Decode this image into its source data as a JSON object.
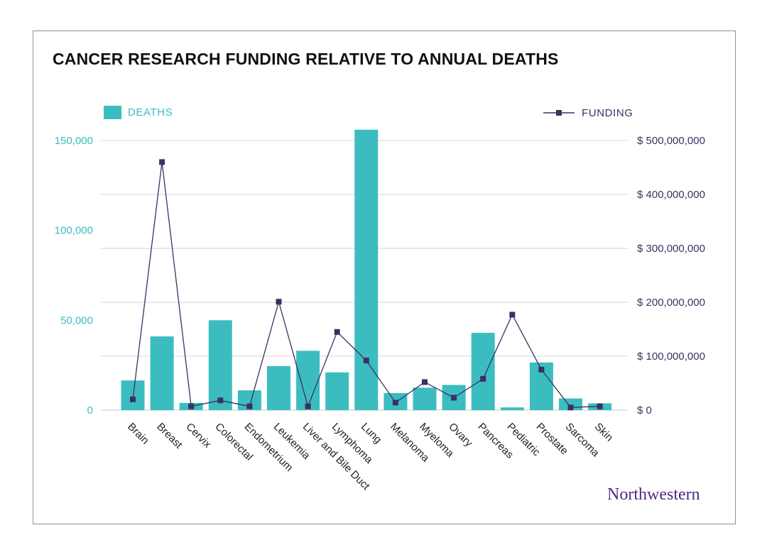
{
  "chart_data": {
    "type": "bar",
    "title": "CANCER RESEARCH FUNDING RELATIVE TO ANNUAL DEATHS",
    "categories": [
      "Brain",
      "Breast",
      "Cervix",
      "Colorectal",
      "Endometrium",
      "Leukemia",
      "Liver and Bile Duct",
      "Lymphoma",
      "Lung",
      "Melanoma",
      "Myeloma",
      "Ovary",
      "Pancreas",
      "Pediatric",
      "Prostate",
      "Sarcoma",
      "Skin"
    ],
    "series": [
      {
        "name": "DEATHS",
        "kind": "bar",
        "axis": "left",
        "color": "#3bbdc0",
        "values": [
          16500,
          41000,
          4000,
          50000,
          11000,
          24500,
          33000,
          21000,
          156000,
          9500,
          12500,
          14000,
          43000,
          1500,
          26500,
          6500,
          3800
        ]
      },
      {
        "name": "FUNDING",
        "kind": "line",
        "axis": "right",
        "color": "#3d2f63",
        "values": [
          20000000,
          460000000,
          7000000,
          18000000,
          7000000,
          201000000,
          7000000,
          145000000,
          92000000,
          14000000,
          52000000,
          23000000,
          58000000,
          177000000,
          75000000,
          5000000,
          7000000
        ]
      }
    ],
    "y_left": {
      "ylim": [
        0,
        150000
      ],
      "ticks": [
        0,
        50000,
        100000,
        150000
      ],
      "tick_labels": [
        "0",
        "50,000",
        "100,000",
        "150,000"
      ]
    },
    "y_right": {
      "ylim": [
        0,
        500000000
      ],
      "ticks": [
        0,
        100000000,
        200000000,
        300000000,
        400000000,
        500000000
      ],
      "tick_labels": [
        "$ 0",
        "$ 100,000,000",
        "$ 200,000,000",
        "$ 300,000,000",
        "$ 400,000,000",
        "$ 500,000,000"
      ]
    },
    "grid": true,
    "legend": {
      "deaths_position": "top-left",
      "funding_position": "top-right"
    }
  },
  "legend": {
    "deaths_label": "DEATHS",
    "funding_label": "FUNDING"
  },
  "brand": "Northwestern",
  "colors": {
    "bar": "#3bbdc0",
    "line": "#3d2f63",
    "grid": "#d5d5d5",
    "brand": "#4e2a84"
  }
}
